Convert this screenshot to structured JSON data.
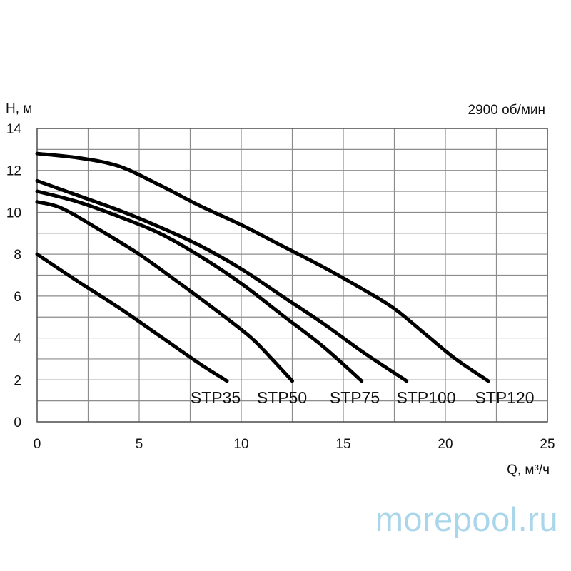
{
  "chart_data": {
    "type": "line",
    "ylabel": "H, м",
    "xlabel": "Q, м³/ч",
    "annotation": "2900 об/мин",
    "xlim": [
      0,
      25
    ],
    "ylim": [
      0,
      14
    ],
    "xticks": [
      0,
      5,
      10,
      15,
      20,
      25
    ],
    "yticks": [
      0,
      2,
      4,
      6,
      8,
      10,
      12,
      14
    ],
    "grid": true,
    "series": [
      {
        "name": "STP35",
        "points": [
          [
            0,
            8.0
          ],
          [
            2,
            6.7
          ],
          [
            4,
            5.45
          ],
          [
            6,
            4.1
          ],
          [
            8,
            2.75
          ],
          [
            9.3,
            1.95
          ]
        ]
      },
      {
        "name": "STP50",
        "points": [
          [
            0,
            10.5
          ],
          [
            1.2,
            10.2
          ],
          [
            3,
            9.2
          ],
          [
            5,
            8.0
          ],
          [
            7,
            6.6
          ],
          [
            9,
            5.15
          ],
          [
            10.5,
            4.0
          ],
          [
            11.5,
            3.0
          ],
          [
            12.5,
            1.95
          ]
        ]
      },
      {
        "name": "STP75",
        "points": [
          [
            0,
            11.0
          ],
          [
            2,
            10.5
          ],
          [
            4,
            9.8
          ],
          [
            6,
            9.0
          ],
          [
            8,
            7.9
          ],
          [
            10,
            6.6
          ],
          [
            12,
            5.1
          ],
          [
            14,
            3.6
          ],
          [
            15.9,
            1.95
          ]
        ]
      },
      {
        "name": "STP100",
        "points": [
          [
            0,
            11.5
          ],
          [
            2,
            10.8
          ],
          [
            4,
            10.1
          ],
          [
            6,
            9.3
          ],
          [
            8,
            8.4
          ],
          [
            10,
            7.3
          ],
          [
            12,
            6.0
          ],
          [
            14,
            4.7
          ],
          [
            16,
            3.3
          ],
          [
            18.1,
            1.95
          ]
        ]
      },
      {
        "name": "STP120",
        "points": [
          [
            0,
            12.8
          ],
          [
            2,
            12.6
          ],
          [
            4,
            12.2
          ],
          [
            6,
            11.3
          ],
          [
            8,
            10.3
          ],
          [
            10,
            9.4
          ],
          [
            12,
            8.4
          ],
          [
            14,
            7.4
          ],
          [
            16,
            6.3
          ],
          [
            17.5,
            5.4
          ],
          [
            19,
            4.2
          ],
          [
            20.5,
            3.0
          ],
          [
            22.1,
            1.95
          ]
        ]
      }
    ]
  },
  "watermark": "morepool.ru"
}
